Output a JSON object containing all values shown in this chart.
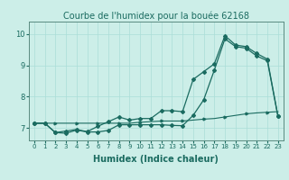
{
  "title": "Courbe de l'humidex pour la bouée 62168",
  "xlabel": "Humidex (Indice chaleur)",
  "background_color": "#cceee8",
  "grid_color": "#aaddd8",
  "line_color": "#1a6b60",
  "x_ticks": [
    0,
    1,
    2,
    3,
    4,
    5,
    6,
    7,
    8,
    9,
    10,
    11,
    12,
    13,
    14,
    15,
    16,
    17,
    18,
    19,
    20,
    21,
    22,
    23
  ],
  "ylim": [
    6.6,
    10.4
  ],
  "xlim": [
    -0.5,
    23.5
  ],
  "line1_x": [
    0,
    1,
    2,
    3,
    4,
    5,
    6,
    7,
    8,
    9,
    10,
    11,
    12,
    13,
    14,
    15,
    16,
    17,
    18,
    19,
    20,
    21,
    22,
    23
  ],
  "line1_y": [
    7.15,
    7.15,
    7.15,
    7.15,
    7.15,
    7.15,
    7.15,
    7.15,
    7.15,
    7.15,
    7.18,
    7.2,
    7.22,
    7.22,
    7.22,
    7.25,
    7.28,
    7.3,
    7.35,
    7.4,
    7.45,
    7.48,
    7.5,
    7.52
  ],
  "line2_x": [
    0,
    1,
    2,
    3,
    4,
    5,
    6,
    7,
    8,
    9,
    10,
    11,
    12,
    13,
    14,
    15,
    16,
    17,
    18,
    19,
    20,
    21,
    22,
    23
  ],
  "line2_y": [
    7.15,
    7.15,
    6.85,
    6.83,
    6.93,
    6.87,
    6.87,
    6.92,
    7.1,
    7.1,
    7.1,
    7.1,
    7.1,
    7.08,
    7.07,
    7.4,
    7.9,
    8.85,
    9.85,
    9.6,
    9.55,
    9.3,
    9.15,
    7.37
  ],
  "line3_x": [
    0,
    1,
    2,
    3,
    4,
    5,
    6,
    7,
    8,
    9,
    10,
    11,
    12,
    13,
    14,
    15,
    16,
    17,
    18,
    19,
    20,
    21,
    22,
    23
  ],
  "line3_y": [
    7.15,
    7.15,
    6.85,
    6.9,
    6.95,
    6.88,
    7.05,
    7.2,
    7.35,
    7.25,
    7.3,
    7.3,
    7.55,
    7.55,
    7.52,
    8.55,
    8.8,
    9.05,
    9.95,
    9.65,
    9.6,
    9.38,
    9.2,
    7.38
  ],
  "title_fontsize": 7,
  "xlabel_fontsize": 7,
  "ytick_fontsize": 6,
  "xtick_fontsize": 5
}
